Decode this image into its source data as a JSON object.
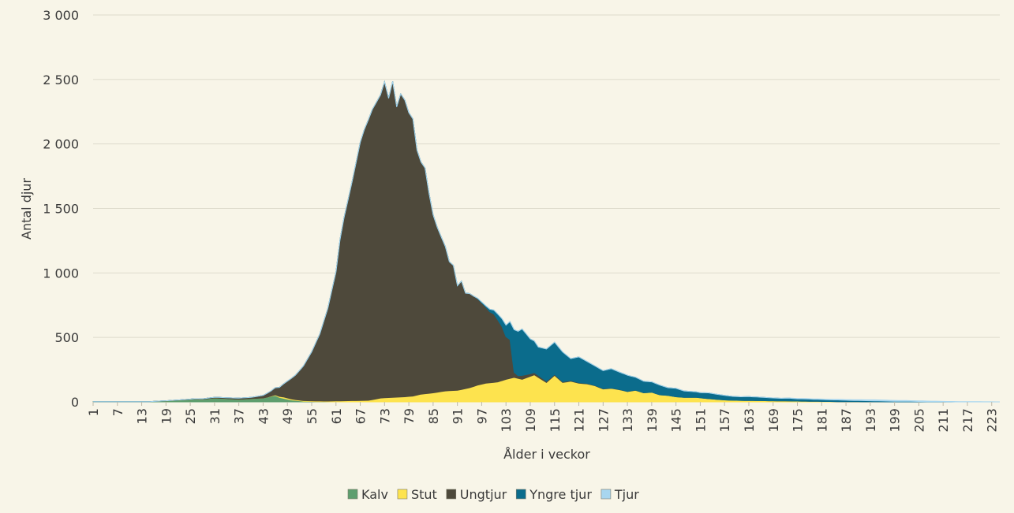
{
  "chart_data": {
    "type": "area",
    "stacked": true,
    "xlabel": "Ålder i veckor",
    "ylabel": "Antal djur",
    "ylim": [
      0,
      3000
    ],
    "yticks": [
      0,
      500,
      1000,
      1500,
      2000,
      2500,
      3000
    ],
    "ytick_labels": [
      "0",
      "500",
      "1 000",
      "1 500",
      "2 000",
      "2 500",
      "3 000"
    ],
    "xlim": [
      1,
      225
    ],
    "xticks": [
      1,
      7,
      13,
      19,
      25,
      31,
      37,
      43,
      49,
      55,
      61,
      67,
      73,
      79,
      85,
      91,
      97,
      103,
      109,
      115,
      121,
      127,
      133,
      139,
      145,
      151,
      157,
      163,
      169,
      175,
      181,
      187,
      193,
      199,
      205,
      211,
      217,
      223
    ],
    "grid": true,
    "legend_position": "bottom",
    "series": [
      {
        "name": "Kalv",
        "color": "#5e9e6e",
        "points": [
          [
            1,
            2
          ],
          [
            15,
            2
          ],
          [
            19,
            8
          ],
          [
            23,
            15
          ],
          [
            26,
            22
          ],
          [
            28,
            20
          ],
          [
            31,
            30
          ],
          [
            34,
            25
          ],
          [
            37,
            20
          ],
          [
            40,
            25
          ],
          [
            43,
            30
          ],
          [
            46,
            50
          ],
          [
            47,
            35
          ],
          [
            50,
            15
          ],
          [
            53,
            5
          ],
          [
            56,
            2
          ],
          [
            60,
            0
          ],
          [
            225,
            0
          ]
        ]
      },
      {
        "name": "Stut",
        "color": "#fde34e",
        "points": [
          [
            1,
            0
          ],
          [
            44,
            0
          ],
          [
            48,
            10
          ],
          [
            52,
            5
          ],
          [
            58,
            5
          ],
          [
            62,
            8
          ],
          [
            66,
            10
          ],
          [
            69,
            12
          ],
          [
            72,
            30
          ],
          [
            75,
            35
          ],
          [
            78,
            40
          ],
          [
            80,
            45
          ],
          [
            82,
            60
          ],
          [
            85,
            70
          ],
          [
            88,
            85
          ],
          [
            91,
            90
          ],
          [
            94,
            110
          ],
          [
            96,
            130
          ],
          [
            98,
            145
          ],
          [
            101,
            155
          ],
          [
            103,
            175
          ],
          [
            105,
            190
          ],
          [
            107,
            175
          ],
          [
            110,
            210
          ],
          [
            113,
            150
          ],
          [
            115,
            205
          ],
          [
            117,
            150
          ],
          [
            119,
            160
          ],
          [
            121,
            145
          ],
          [
            123,
            140
          ],
          [
            125,
            125
          ],
          [
            127,
            100
          ],
          [
            129,
            105
          ],
          [
            131,
            95
          ],
          [
            133,
            80
          ],
          [
            135,
            90
          ],
          [
            137,
            70
          ],
          [
            139,
            75
          ],
          [
            141,
            55
          ],
          [
            143,
            50
          ],
          [
            145,
            40
          ],
          [
            147,
            35
          ],
          [
            150,
            35
          ],
          [
            153,
            25
          ],
          [
            157,
            15
          ],
          [
            160,
            12
          ],
          [
            165,
            10
          ],
          [
            170,
            8
          ],
          [
            175,
            6
          ],
          [
            180,
            4
          ],
          [
            185,
            2
          ],
          [
            190,
            1
          ],
          [
            200,
            0
          ],
          [
            225,
            0
          ]
        ]
      },
      {
        "name": "Ungtjur",
        "color": "#4e493b",
        "points": [
          [
            1,
            0
          ],
          [
            15,
            0
          ],
          [
            25,
            2
          ],
          [
            30,
            5
          ],
          [
            35,
            8
          ],
          [
            40,
            10
          ],
          [
            43,
            20
          ],
          [
            45,
            40
          ],
          [
            47,
            70
          ],
          [
            49,
            130
          ],
          [
            51,
            190
          ],
          [
            53,
            270
          ],
          [
            55,
            380
          ],
          [
            57,
            520
          ],
          [
            59,
            720
          ],
          [
            61,
            1000
          ],
          [
            62,
            1250
          ],
          [
            63,
            1420
          ],
          [
            65,
            1700
          ],
          [
            67,
            2000
          ],
          [
            68,
            2100
          ],
          [
            70,
            2250
          ],
          [
            72,
            2350
          ],
          [
            73,
            2450
          ],
          [
            74,
            2320
          ],
          [
            75,
            2450
          ],
          [
            76,
            2250
          ],
          [
            77,
            2350
          ],
          [
            78,
            2300
          ],
          [
            79,
            2200
          ],
          [
            80,
            2150
          ],
          [
            81,
            1900
          ],
          [
            82,
            1800
          ],
          [
            83,
            1750
          ],
          [
            84,
            1550
          ],
          [
            85,
            1380
          ],
          [
            86,
            1280
          ],
          [
            87,
            1200
          ],
          [
            88,
            1120
          ],
          [
            89,
            1000
          ],
          [
            90,
            970
          ],
          [
            91,
            810
          ],
          [
            92,
            840
          ],
          [
            93,
            740
          ],
          [
            94,
            730
          ],
          [
            96,
            670
          ],
          [
            97,
            630
          ],
          [
            99,
            550
          ],
          [
            100,
            530
          ],
          [
            101,
            480
          ],
          [
            102,
            420
          ],
          [
            103,
            330
          ],
          [
            104,
            300
          ],
          [
            105,
            40
          ],
          [
            106,
            20
          ],
          [
            107,
            30
          ],
          [
            109,
            20
          ],
          [
            111,
            15
          ],
          [
            113,
            10
          ],
          [
            115,
            8
          ],
          [
            118,
            6
          ],
          [
            121,
            4
          ],
          [
            125,
            3
          ],
          [
            130,
            2
          ],
          [
            140,
            0
          ],
          [
            225,
            0
          ]
        ]
      },
      {
        "name": "Yngre tjur",
        "color": "#0b6c8c",
        "points": [
          [
            1,
            0
          ],
          [
            95,
            0
          ],
          [
            98,
            10
          ],
          [
            100,
            30
          ],
          [
            102,
            60
          ],
          [
            103,
            90
          ],
          [
            104,
            140
          ],
          [
            105,
            330
          ],
          [
            107,
            360
          ],
          [
            109,
            270
          ],
          [
            111,
            220
          ],
          [
            113,
            250
          ],
          [
            115,
            250
          ],
          [
            117,
            230
          ],
          [
            119,
            170
          ],
          [
            121,
            200
          ],
          [
            123,
            170
          ],
          [
            125,
            150
          ],
          [
            127,
            140
          ],
          [
            129,
            150
          ],
          [
            131,
            135
          ],
          [
            133,
            125
          ],
          [
            135,
            100
          ],
          [
            137,
            90
          ],
          [
            139,
            80
          ],
          [
            141,
            75
          ],
          [
            143,
            60
          ],
          [
            145,
            65
          ],
          [
            147,
            50
          ],
          [
            149,
            45
          ],
          [
            151,
            40
          ],
          [
            153,
            45
          ],
          [
            155,
            40
          ],
          [
            157,
            35
          ],
          [
            159,
            30
          ],
          [
            161,
            28
          ],
          [
            163,
            30
          ],
          [
            165,
            28
          ],
          [
            167,
            25
          ],
          [
            169,
            22
          ],
          [
            171,
            20
          ],
          [
            173,
            22
          ],
          [
            175,
            18
          ],
          [
            177,
            18
          ],
          [
            179,
            16
          ],
          [
            181,
            15
          ],
          [
            183,
            13
          ],
          [
            185,
            13
          ],
          [
            187,
            11
          ],
          [
            189,
            10
          ],
          [
            191,
            9
          ],
          [
            193,
            8
          ],
          [
            195,
            7
          ],
          [
            197,
            6
          ],
          [
            199,
            5
          ],
          [
            201,
            5
          ],
          [
            203,
            4
          ],
          [
            205,
            3
          ],
          [
            207,
            2
          ],
          [
            209,
            2
          ],
          [
            211,
            1
          ],
          [
            215,
            0
          ],
          [
            225,
            0
          ]
        ]
      },
      {
        "name": "Tjur",
        "color": "#a8d6ef",
        "points": [
          [
            1,
            0
          ],
          [
            170,
            0
          ],
          [
            175,
            2
          ],
          [
            180,
            3
          ],
          [
            185,
            5
          ],
          [
            190,
            6
          ],
          [
            195,
            8
          ],
          [
            200,
            6
          ],
          [
            205,
            5
          ],
          [
            210,
            3
          ],
          [
            215,
            2
          ],
          [
            220,
            1
          ],
          [
            225,
            0
          ]
        ]
      }
    ]
  }
}
